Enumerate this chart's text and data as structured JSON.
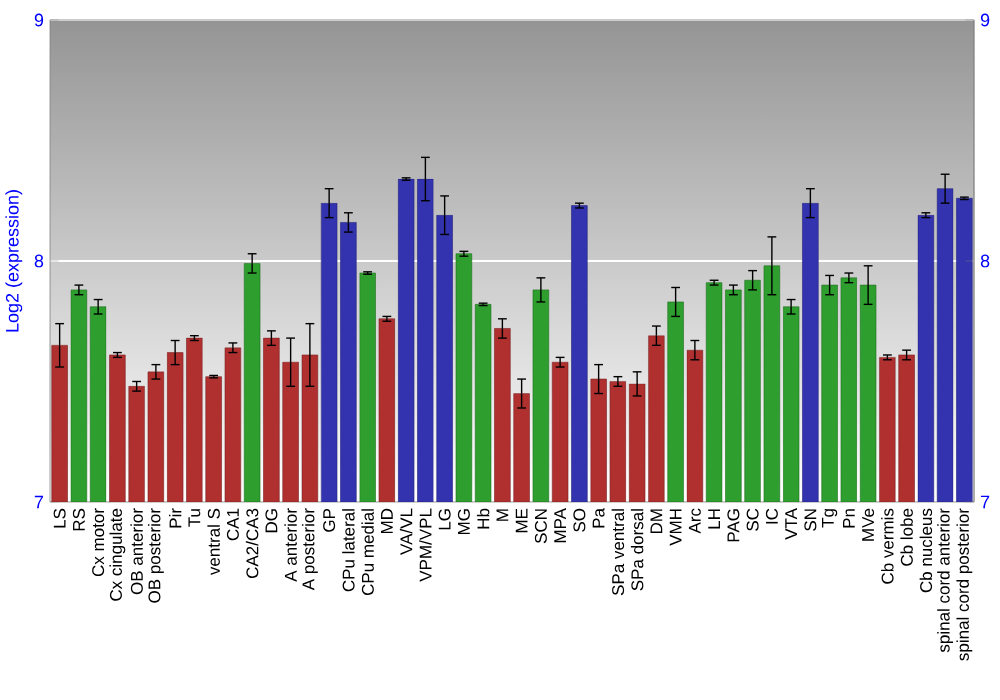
{
  "chart_data": {
    "type": "bar",
    "ylabel": "Log2 (expression)",
    "categories": [
      "LS",
      "RS",
      "Cx motor",
      "Cx cingulate",
      "OB anterior",
      "OB posterior",
      "Pir",
      "Tu",
      "ventral S",
      "CA1",
      "CA2/CA3",
      "DG",
      "A anterior",
      "A posterior",
      "GP",
      "CPu lateral",
      "CPu medial",
      "MD",
      "VA/VL",
      "VPM/VPL",
      "LG",
      "MG",
      "Hb",
      "M",
      "ME",
      "SCN",
      "MPA",
      "SO",
      "Pa",
      "SPa ventral",
      "SPa dorsal",
      "DM",
      "VMH",
      "Arc",
      "LH",
      "PAG",
      "SC",
      "IC",
      "VTA",
      "SN",
      "Tg",
      "Pn",
      "MVe",
      "Cb vermis",
      "Cb lobe",
      "Cb nucleus",
      "spinal cord anterior",
      "spinal cord posterior"
    ],
    "values": [
      7.65,
      7.88,
      7.81,
      7.61,
      7.48,
      7.54,
      7.62,
      7.68,
      7.52,
      7.64,
      7.99,
      7.68,
      7.58,
      7.61,
      8.24,
      8.16,
      7.95,
      7.76,
      8.34,
      8.34,
      8.19,
      8.03,
      7.82,
      7.72,
      7.45,
      7.88,
      7.58,
      8.23,
      7.51,
      7.5,
      7.49,
      7.69,
      7.83,
      7.63,
      7.91,
      7.88,
      7.92,
      7.98,
      7.81,
      8.24,
      7.9,
      7.93,
      7.9,
      7.6,
      7.61,
      8.19,
      8.3,
      8.26
    ],
    "errors": [
      0.09,
      0.02,
      0.03,
      0.01,
      0.02,
      0.03,
      0.05,
      0.01,
      0.005,
      0.02,
      0.04,
      0.03,
      0.1,
      0.13,
      0.06,
      0.04,
      0.005,
      0.01,
      0.005,
      0.09,
      0.08,
      0.01,
      0.005,
      0.04,
      0.06,
      0.05,
      0.02,
      0.01,
      0.06,
      0.02,
      0.05,
      0.04,
      0.06,
      0.04,
      0.01,
      0.02,
      0.04,
      0.12,
      0.03,
      0.06,
      0.04,
      0.02,
      0.08,
      0.01,
      0.02,
      0.01,
      0.06,
      0.005
    ],
    "colors": [
      "#b03030",
      "#2e9e2e",
      "#2e9e2e",
      "#b03030",
      "#b03030",
      "#b03030",
      "#b03030",
      "#b03030",
      "#b03030",
      "#b03030",
      "#2e9e2e",
      "#b03030",
      "#b03030",
      "#b03030",
      "#3333b0",
      "#3333b0",
      "#2e9e2e",
      "#b03030",
      "#3333b0",
      "#3333b0",
      "#3333b0",
      "#2e9e2e",
      "#2e9e2e",
      "#b03030",
      "#b03030",
      "#2e9e2e",
      "#b03030",
      "#3333b0",
      "#b03030",
      "#b03030",
      "#b03030",
      "#b03030",
      "#2e9e2e",
      "#b03030",
      "#2e9e2e",
      "#2e9e2e",
      "#2e9e2e",
      "#2e9e2e",
      "#2e9e2e",
      "#3333b0",
      "#2e9e2e",
      "#2e9e2e",
      "#2e9e2e",
      "#b03030",
      "#b03030",
      "#3333b0",
      "#3333b0",
      "#3333b0"
    ],
    "ylim": [
      7,
      9
    ],
    "yticks": [
      7,
      8,
      9
    ],
    "y2lim": [
      7,
      9
    ],
    "y2ticks": [
      7,
      8,
      9
    ],
    "grid": "y"
  }
}
